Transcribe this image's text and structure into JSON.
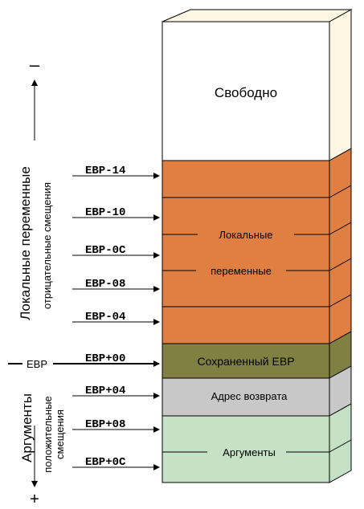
{
  "diagram": {
    "free_label": "Свободно",
    "locals_label_line1": "Локальные",
    "locals_label_line2": "переменные",
    "saved_ebp_label": "Сохраненный EBP",
    "return_addr_label": "Адрес возврата",
    "arguments_label": "Аргументы",
    "offsets_above": [
      "EBP-14",
      "EBP-10",
      "EBP-0C",
      "EBP-08",
      "EBP-04"
    ],
    "offset_ebp": "EBP+00",
    "offsets_below": [
      "EBP+04",
      "EBP+08",
      "EBP+0C"
    ],
    "left_axis": {
      "minus_sign": "–",
      "plus_sign": "+",
      "ebp_label": "EBP",
      "locals_title": "Локальные переменные",
      "locals_subtitle": "отрицательные смещения",
      "args_title": "Аргументы",
      "args_subtitle_line1": "положительные",
      "args_subtitle_line2": "смещения"
    },
    "colors": {
      "free": "#ffffff",
      "free_side": "#fdf6e3",
      "locals": "#e07f42",
      "saved_ebp": "#808042",
      "return_addr": "#c8c8c8",
      "arguments": "#c6e2c6"
    }
  }
}
